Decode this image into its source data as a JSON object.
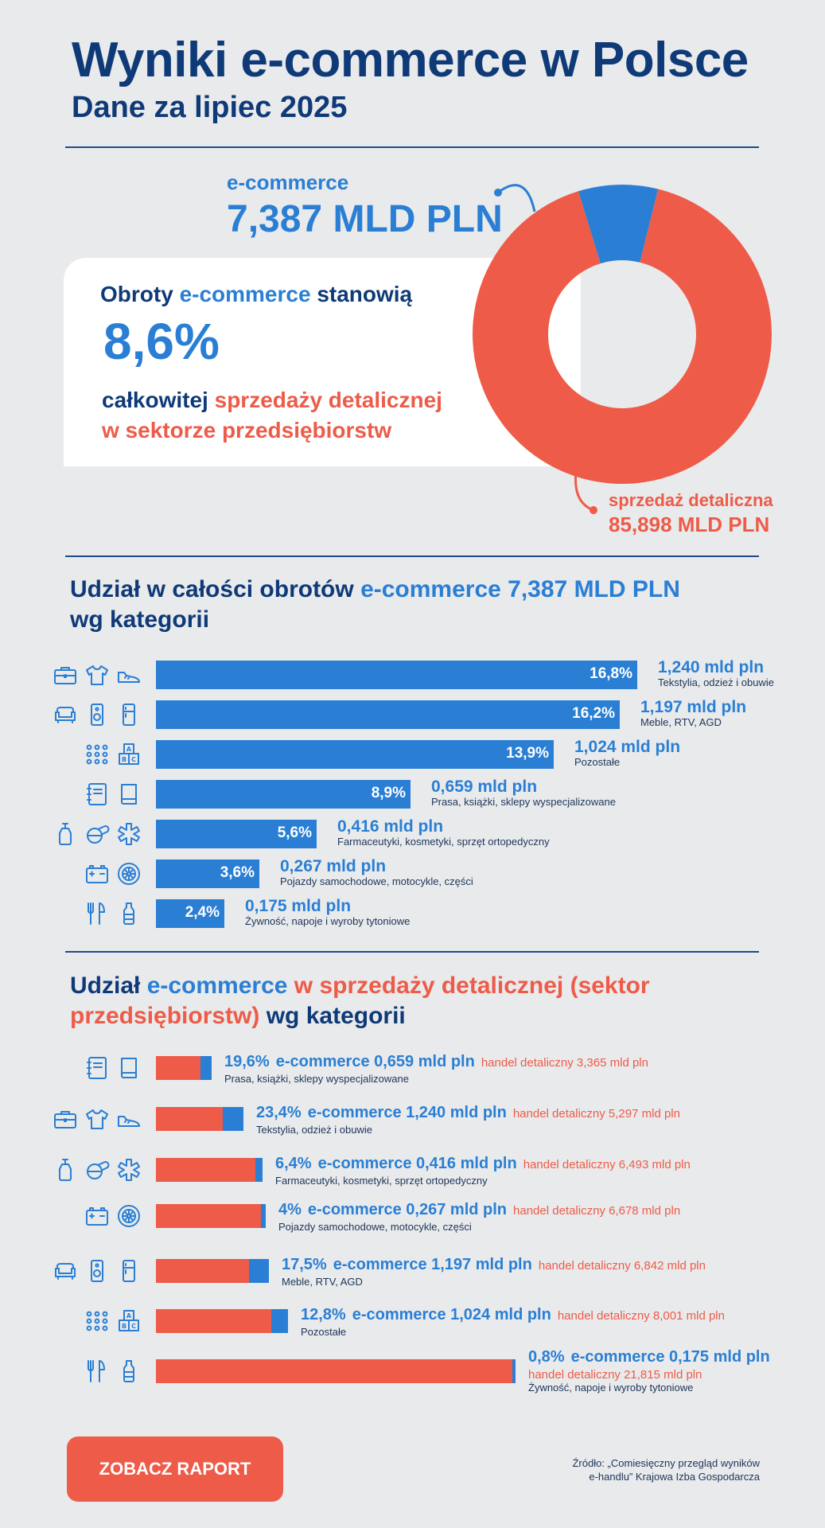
{
  "header": {
    "title": "Wyniki e-commerce w Polsce",
    "subtitle": "Dane za lipiec 2025"
  },
  "share": {
    "line1_a": "Obroty ",
    "line1_b": "e-commerce",
    "line1_c": " stanowią",
    "percent": "8,6%",
    "line2_a": "całkowitej ",
    "line2_b": "sprzedaży detalicznej",
    "line3": "w sektorze przedsiębiorstw"
  },
  "callouts": {
    "ecommerce_label": "e-commerce",
    "ecommerce_value": "7,387 MLD PLN",
    "retail_label": "sprzedaż detaliczna",
    "retail_value": "85,898 MLD PLN"
  },
  "section1": {
    "title_a": "Udział w całości obrotów ",
    "title_b": "e-commerce 7,387 MLD PLN",
    "title_c": "wg kategorii"
  },
  "section2": {
    "title_a": "Udział ",
    "title_b": "e-commerce",
    "title_c": " w sprzedaży detalicznej (sektor",
    "title_d": "przedsiębiorstw)",
    "title_e": " wg kategorii"
  },
  "cta": {
    "label": "ZOBACZ RAPORT"
  },
  "source": {
    "text": "Źródło: „Comiesięczny przegląd wyników\ne-handlu” Krajowa Izba Gospodarcza"
  },
  "colors": {
    "navy": "#0f3a78",
    "blue": "#2a7fd4",
    "coral": "#ee5b48",
    "background": "#e9eaec"
  },
  "chart_data": [
    {
      "type": "pie",
      "labels": [
        "e-commerce",
        "sprzedaż detaliczna"
      ],
      "values": [
        8.6,
        91.4
      ],
      "display_values": [
        "7,387 MLD PLN",
        "85,898 MLD PLN"
      ],
      "colors": [
        "#2a7fd4",
        "#ee5b48"
      ]
    },
    {
      "type": "bar",
      "orientation": "horizontal",
      "values": [
        16.8,
        16.2,
        13.9,
        8.9,
        5.6,
        3.6,
        2.4
      ],
      "value_labels": [
        "16,8%",
        "16,2%",
        "13,9%",
        "8,9%",
        "5,6%",
        "3,6%",
        "2,4%"
      ],
      "amounts": [
        "1,240 mld pln",
        "1,197 mld pln",
        "1,024 mld pln",
        "0,659 mld pln",
        "0,416 mld pln",
        "0,267 mld pln",
        "0,175 mld pln"
      ],
      "categories": [
        "Tekstylia, odzież i obuwie",
        "Meble, RTV, AGD",
        "Pozostałe",
        "Prasa, książki, sklepy wyspecjalizowane",
        "Farmaceutyki, kosmetyki, sprzęt ortopedyczny",
        "Pojazdy samochodowe, motocykle, części",
        "Żywność, napoje i wyroby tytoniowe"
      ],
      "icons": [
        [
          "briefcase-icon",
          "tshirt-icon",
          "sneaker-icon"
        ],
        [
          "sofa-icon",
          "speaker-icon",
          "fridge-icon"
        ],
        [
          "dots-grid-icon",
          "abc-blocks-icon"
        ],
        [
          "notebook-icon",
          "book-icon"
        ],
        [
          "bottle-icon",
          "pills-icon",
          "medical-star-icon"
        ],
        [
          "car-battery-icon",
          "wheel-icon"
        ],
        [
          "cutlery-icon",
          "drink-bottle-icon"
        ]
      ]
    },
    {
      "type": "bar",
      "orientation": "horizontal",
      "stacked": true,
      "series": [
        {
          "name": "e-commerce",
          "values": [
            0.659,
            1.24,
            0.416,
            0.267,
            1.197,
            1.024,
            0.175
          ]
        },
        {
          "name": "handel detaliczny",
          "values": [
            3.365,
            5.297,
            6.493,
            6.678,
            6.842,
            8.001,
            21.815
          ]
        }
      ],
      "share_labels": [
        "19,6%",
        "23,4%",
        "6,4%",
        "4%",
        "17,5%",
        "12,8%",
        "0,8%"
      ],
      "ecommerce_labels": [
        "e-commerce 0,659 mld pln",
        "e-commerce 1,240 mld pln",
        "e-commerce 0,416 mld pln",
        "e-commerce 0,267 mld pln",
        "e-commerce 1,197 mld pln",
        "e-commerce 1,024 mld pln",
        "e-commerce 0,175 mld pln"
      ],
      "retail_labels": [
        "handel detaliczny 3,365 mld pln",
        "handel detaliczny 5,297 mld pln",
        "handel detaliczny 6,493 mld pln",
        "handel detaliczny 6,678 mld pln",
        "handel detaliczny 6,842 mld pln",
        "handel detaliczny 8,001 mld pln",
        "handel detaliczny 21,815 mld pln"
      ],
      "categories": [
        "Prasa, książki, sklepy wyspecjalizowane",
        "Tekstylia, odzież i obuwie",
        "Farmaceutyki, kosmetyki, sprzęt ortopedyczny",
        "Pojazdy samochodowe, motocykle, części",
        "Meble, RTV, AGD",
        "Pozostałe",
        "Żywność, napoje i wyroby tytoniowe"
      ],
      "icons": [
        [
          "notebook-icon",
          "book-icon"
        ],
        [
          "briefcase-icon",
          "tshirt-icon",
          "sneaker-icon"
        ],
        [
          "bottle-icon",
          "pills-icon",
          "medical-star-icon"
        ],
        [
          "car-battery-icon",
          "wheel-icon"
        ],
        [
          "sofa-icon",
          "speaker-icon",
          "fridge-icon"
        ],
        [
          "dots-grid-icon",
          "abc-blocks-icon"
        ],
        [
          "cutlery-icon",
          "drink-bottle-icon"
        ]
      ]
    }
  ]
}
